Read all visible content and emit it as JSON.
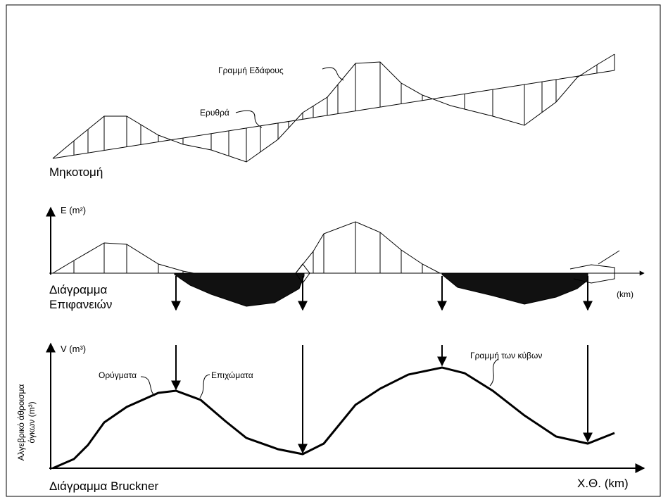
{
  "profile": {
    "ground_label": "Γραμμή Εδάφους",
    "grade_label": "Ερυθρά",
    "title": "Μηκοτομή"
  },
  "areas": {
    "axis_label": "E (m²)",
    "title_line1": "Διάγραμμα",
    "title_line2": "Επιφανειών",
    "x_unit": "(km)"
  },
  "bruckner": {
    "axis_label": "V (m³)",
    "cut_label": "Ορύγματα",
    "fill_label": "Επιχώματα",
    "curve_label": "Γραμμή των κύβων",
    "y_title_line1": "Αλγεβρικό άθροισμα",
    "y_title_line2": "όγκων (m³)",
    "title": "Διάγραμμα Bruckner",
    "x_label": "Χ.Θ. (km)"
  }
}
